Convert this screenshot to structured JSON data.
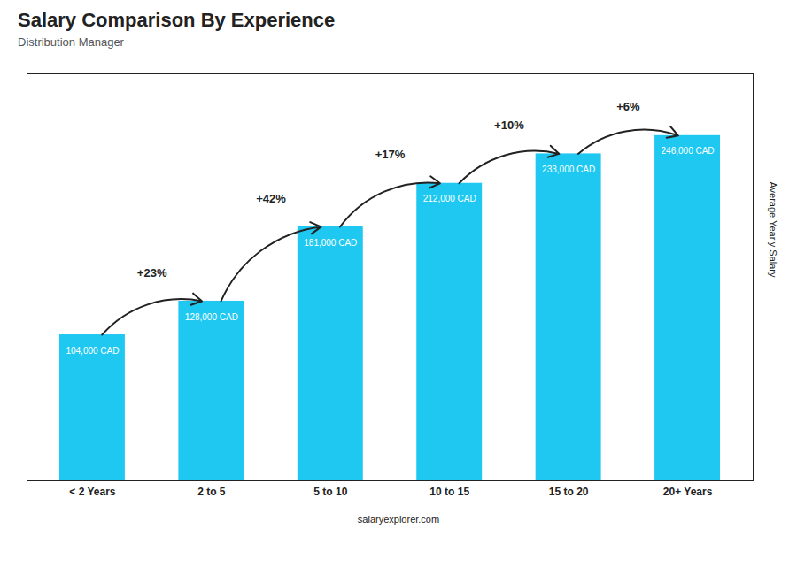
{
  "chart_data": {
    "type": "bar",
    "title": "Salary Comparison By Experience",
    "subtitle": "Distribution Manager",
    "ylabel": "Average Yearly Salary",
    "caption": "salaryexplorer.com",
    "categories": [
      "< 2 Years",
      "2 to 5",
      "5 to 10",
      "10 to 15",
      "15 to 20",
      "20+ Years"
    ],
    "values": [
      104000,
      128000,
      181000,
      212000,
      233000,
      246000
    ],
    "value_labels": [
      "104,000 CAD",
      "128,000 CAD",
      "181,000 CAD",
      "212,000 CAD",
      "233,000 CAD",
      "246,000 CAD"
    ],
    "annotations": [
      "+23%",
      "+42%",
      "+17%",
      "+10%",
      "+6%"
    ],
    "color": "#1EC8F0",
    "ylim": [
      0,
      290000
    ],
    "yticks": [],
    "tick_labels": "x",
    "data_labels": true,
    "grid": false
  }
}
